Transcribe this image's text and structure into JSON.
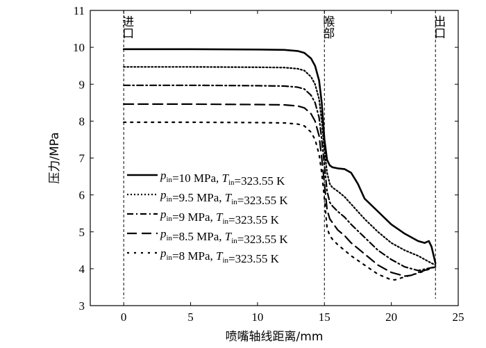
{
  "chart_data": {
    "type": "line",
    "title": "",
    "xlabel": "喷嘴轴线距离/mm",
    "ylabel": "压力/MPa",
    "xlim": [
      -2.5,
      25
    ],
    "ylim": [
      3,
      11
    ],
    "xticks": [
      0,
      5,
      10,
      15,
      20,
      25
    ],
    "yticks": [
      3,
      4,
      5,
      6,
      7,
      8,
      9,
      10,
      11
    ],
    "grid": false,
    "legend_position": "center-left",
    "annotations": [
      {
        "text": "进口",
        "x": 0
      },
      {
        "text": "喉部",
        "x": 15
      },
      {
        "text": "出口",
        "x": 23.3
      }
    ],
    "series": [
      {
        "name_parts": {
          "p": "p",
          "p_sub": "in",
          "p_val": "=10 MPa, ",
          "t": "T",
          "t_sub": "in",
          "t_val": "=323.55 K"
        },
        "color": "#000000",
        "dash": "solid",
        "x": [
          0,
          5,
          10,
          12,
          13,
          13.5,
          14,
          14.3,
          14.6,
          14.8,
          15,
          15.2,
          15.4,
          15.6,
          16,
          16.5,
          17,
          17.5,
          18,
          19,
          20,
          21,
          22,
          22.5,
          22.8,
          23.0,
          23.2,
          23.3
        ],
        "y": [
          9.95,
          9.95,
          9.94,
          9.93,
          9.9,
          9.85,
          9.7,
          9.5,
          9.1,
          8.5,
          7.5,
          6.95,
          6.8,
          6.75,
          6.72,
          6.7,
          6.6,
          6.3,
          5.9,
          5.55,
          5.2,
          4.95,
          4.75,
          4.7,
          4.75,
          4.6,
          4.3,
          4.15
        ]
      },
      {
        "name_parts": {
          "p": "p",
          "p_sub": "in",
          "p_val": "=9.5 MPa, ",
          "t": "T",
          "t_sub": "in",
          "t_val": "=323.55 K"
        },
        "color": "#000000",
        "dash": "dotted",
        "x": [
          0,
          5,
          10,
          12,
          13,
          13.5,
          14,
          14.3,
          14.6,
          14.8,
          15,
          15.2,
          15.4,
          15.6,
          16,
          16.5,
          17,
          18,
          19,
          20,
          21,
          22,
          23,
          23.3
        ],
        "y": [
          9.47,
          9.47,
          9.46,
          9.45,
          9.42,
          9.37,
          9.2,
          9.0,
          8.6,
          8.0,
          7.2,
          6.6,
          6.3,
          6.2,
          6.1,
          5.95,
          5.75,
          5.35,
          5.0,
          4.7,
          4.5,
          4.35,
          4.15,
          4.1
        ]
      },
      {
        "name_parts": {
          "p": "p",
          "p_sub": "in",
          "p_val": "=9 MPa, ",
          "t": "T",
          "t_sub": "in",
          "t_val": "=323.55 K"
        },
        "color": "#000000",
        "dash": "dashdot",
        "x": [
          0,
          5,
          10,
          12,
          13,
          13.5,
          14,
          14.3,
          14.6,
          14.8,
          15,
          15.2,
          15.4,
          15.6,
          16,
          16.5,
          17,
          18,
          19,
          20,
          21,
          22,
          23.3
        ],
        "y": [
          8.97,
          8.97,
          8.96,
          8.95,
          8.92,
          8.87,
          8.7,
          8.5,
          8.1,
          7.5,
          6.8,
          6.1,
          5.8,
          5.7,
          5.55,
          5.4,
          5.2,
          4.85,
          4.5,
          4.25,
          4.05,
          3.95,
          4.05
        ]
      },
      {
        "name_parts": {
          "p": "p",
          "p_sub": "in",
          "p_val": "=8.5 MPa, ",
          "t": "T",
          "t_sub": "in",
          "t_val": "=323.55 K"
        },
        "color": "#000000",
        "dash": "dashed",
        "x": [
          0,
          5,
          10,
          12,
          13,
          13.5,
          14,
          14.3,
          14.6,
          14.8,
          15,
          15.2,
          15.4,
          15.6,
          16,
          16.5,
          17,
          18,
          19,
          20,
          21,
          21.5,
          22,
          23.3
        ],
        "y": [
          8.46,
          8.46,
          8.45,
          8.44,
          8.41,
          8.36,
          8.2,
          8.0,
          7.6,
          7.0,
          6.3,
          5.6,
          5.35,
          5.25,
          5.05,
          4.9,
          4.7,
          4.4,
          4.1,
          3.9,
          3.8,
          3.82,
          3.9,
          4.05
        ]
      },
      {
        "name_parts": {
          "p": "p",
          "p_sub": "in",
          "p_val": "=8 MPa, ",
          "t": "T",
          "t_sub": "in",
          "t_val": "=323.55 K"
        },
        "color": "#000000",
        "dash": "densedot",
        "x": [
          0,
          5,
          10,
          12,
          13,
          13.5,
          14,
          14.3,
          14.6,
          14.8,
          15,
          15.2,
          15.4,
          15.6,
          16,
          16.5,
          17,
          18,
          19,
          20,
          20.3,
          21,
          22,
          23.3
        ],
        "y": [
          7.97,
          7.97,
          7.96,
          7.95,
          7.92,
          7.87,
          7.7,
          7.5,
          7.1,
          6.6,
          5.9,
          5.1,
          4.9,
          4.8,
          4.65,
          4.5,
          4.35,
          4.1,
          3.85,
          3.7,
          3.7,
          3.78,
          3.88,
          4.05
        ]
      }
    ]
  }
}
